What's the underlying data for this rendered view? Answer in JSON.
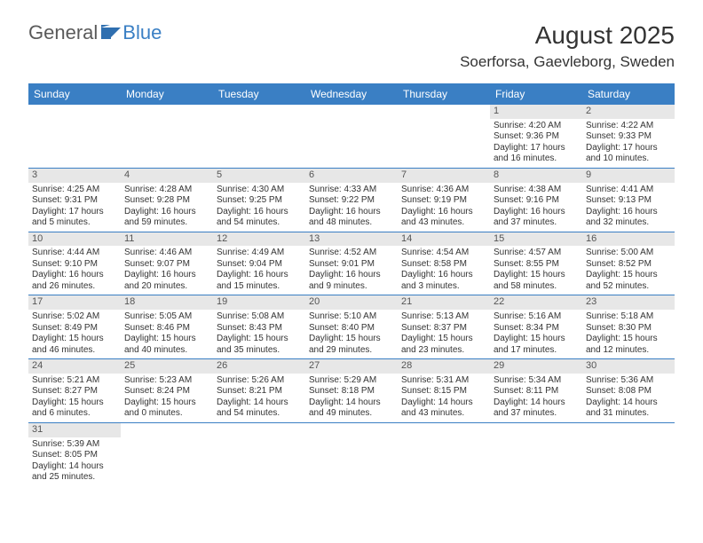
{
  "logo": {
    "part1": "General",
    "part2": "Blue"
  },
  "title": "August 2025",
  "location": "Soerforsa, Gaevleborg, Sweden",
  "colors": {
    "header_bg": "#3a7fc4",
    "header_text": "#ffffff",
    "daynum_bg": "#e7e7e7",
    "border": "#3a7fc4",
    "body_text": "#333333"
  },
  "weekdays": [
    "Sunday",
    "Monday",
    "Tuesday",
    "Wednesday",
    "Thursday",
    "Friday",
    "Saturday"
  ],
  "weeks": [
    [
      null,
      null,
      null,
      null,
      null,
      {
        "n": "1",
        "sr": "Sunrise: 4:20 AM",
        "ss": "Sunset: 9:36 PM",
        "dl": "Daylight: 17 hours and 16 minutes."
      },
      {
        "n": "2",
        "sr": "Sunrise: 4:22 AM",
        "ss": "Sunset: 9:33 PM",
        "dl": "Daylight: 17 hours and 10 minutes."
      }
    ],
    [
      {
        "n": "3",
        "sr": "Sunrise: 4:25 AM",
        "ss": "Sunset: 9:31 PM",
        "dl": "Daylight: 17 hours and 5 minutes."
      },
      {
        "n": "4",
        "sr": "Sunrise: 4:28 AM",
        "ss": "Sunset: 9:28 PM",
        "dl": "Daylight: 16 hours and 59 minutes."
      },
      {
        "n": "5",
        "sr": "Sunrise: 4:30 AM",
        "ss": "Sunset: 9:25 PM",
        "dl": "Daylight: 16 hours and 54 minutes."
      },
      {
        "n": "6",
        "sr": "Sunrise: 4:33 AM",
        "ss": "Sunset: 9:22 PM",
        "dl": "Daylight: 16 hours and 48 minutes."
      },
      {
        "n": "7",
        "sr": "Sunrise: 4:36 AM",
        "ss": "Sunset: 9:19 PM",
        "dl": "Daylight: 16 hours and 43 minutes."
      },
      {
        "n": "8",
        "sr": "Sunrise: 4:38 AM",
        "ss": "Sunset: 9:16 PM",
        "dl": "Daylight: 16 hours and 37 minutes."
      },
      {
        "n": "9",
        "sr": "Sunrise: 4:41 AM",
        "ss": "Sunset: 9:13 PM",
        "dl": "Daylight: 16 hours and 32 minutes."
      }
    ],
    [
      {
        "n": "10",
        "sr": "Sunrise: 4:44 AM",
        "ss": "Sunset: 9:10 PM",
        "dl": "Daylight: 16 hours and 26 minutes."
      },
      {
        "n": "11",
        "sr": "Sunrise: 4:46 AM",
        "ss": "Sunset: 9:07 PM",
        "dl": "Daylight: 16 hours and 20 minutes."
      },
      {
        "n": "12",
        "sr": "Sunrise: 4:49 AM",
        "ss": "Sunset: 9:04 PM",
        "dl": "Daylight: 16 hours and 15 minutes."
      },
      {
        "n": "13",
        "sr": "Sunrise: 4:52 AM",
        "ss": "Sunset: 9:01 PM",
        "dl": "Daylight: 16 hours and 9 minutes."
      },
      {
        "n": "14",
        "sr": "Sunrise: 4:54 AM",
        "ss": "Sunset: 8:58 PM",
        "dl": "Daylight: 16 hours and 3 minutes."
      },
      {
        "n": "15",
        "sr": "Sunrise: 4:57 AM",
        "ss": "Sunset: 8:55 PM",
        "dl": "Daylight: 15 hours and 58 minutes."
      },
      {
        "n": "16",
        "sr": "Sunrise: 5:00 AM",
        "ss": "Sunset: 8:52 PM",
        "dl": "Daylight: 15 hours and 52 minutes."
      }
    ],
    [
      {
        "n": "17",
        "sr": "Sunrise: 5:02 AM",
        "ss": "Sunset: 8:49 PM",
        "dl": "Daylight: 15 hours and 46 minutes."
      },
      {
        "n": "18",
        "sr": "Sunrise: 5:05 AM",
        "ss": "Sunset: 8:46 PM",
        "dl": "Daylight: 15 hours and 40 minutes."
      },
      {
        "n": "19",
        "sr": "Sunrise: 5:08 AM",
        "ss": "Sunset: 8:43 PM",
        "dl": "Daylight: 15 hours and 35 minutes."
      },
      {
        "n": "20",
        "sr": "Sunrise: 5:10 AM",
        "ss": "Sunset: 8:40 PM",
        "dl": "Daylight: 15 hours and 29 minutes."
      },
      {
        "n": "21",
        "sr": "Sunrise: 5:13 AM",
        "ss": "Sunset: 8:37 PM",
        "dl": "Daylight: 15 hours and 23 minutes."
      },
      {
        "n": "22",
        "sr": "Sunrise: 5:16 AM",
        "ss": "Sunset: 8:34 PM",
        "dl": "Daylight: 15 hours and 17 minutes."
      },
      {
        "n": "23",
        "sr": "Sunrise: 5:18 AM",
        "ss": "Sunset: 8:30 PM",
        "dl": "Daylight: 15 hours and 12 minutes."
      }
    ],
    [
      {
        "n": "24",
        "sr": "Sunrise: 5:21 AM",
        "ss": "Sunset: 8:27 PM",
        "dl": "Daylight: 15 hours and 6 minutes."
      },
      {
        "n": "25",
        "sr": "Sunrise: 5:23 AM",
        "ss": "Sunset: 8:24 PM",
        "dl": "Daylight: 15 hours and 0 minutes."
      },
      {
        "n": "26",
        "sr": "Sunrise: 5:26 AM",
        "ss": "Sunset: 8:21 PM",
        "dl": "Daylight: 14 hours and 54 minutes."
      },
      {
        "n": "27",
        "sr": "Sunrise: 5:29 AM",
        "ss": "Sunset: 8:18 PM",
        "dl": "Daylight: 14 hours and 49 minutes."
      },
      {
        "n": "28",
        "sr": "Sunrise: 5:31 AM",
        "ss": "Sunset: 8:15 PM",
        "dl": "Daylight: 14 hours and 43 minutes."
      },
      {
        "n": "29",
        "sr": "Sunrise: 5:34 AM",
        "ss": "Sunset: 8:11 PM",
        "dl": "Daylight: 14 hours and 37 minutes."
      },
      {
        "n": "30",
        "sr": "Sunrise: 5:36 AM",
        "ss": "Sunset: 8:08 PM",
        "dl": "Daylight: 14 hours and 31 minutes."
      }
    ],
    [
      {
        "n": "31",
        "sr": "Sunrise: 5:39 AM",
        "ss": "Sunset: 8:05 PM",
        "dl": "Daylight: 14 hours and 25 minutes."
      },
      null,
      null,
      null,
      null,
      null,
      null
    ]
  ]
}
